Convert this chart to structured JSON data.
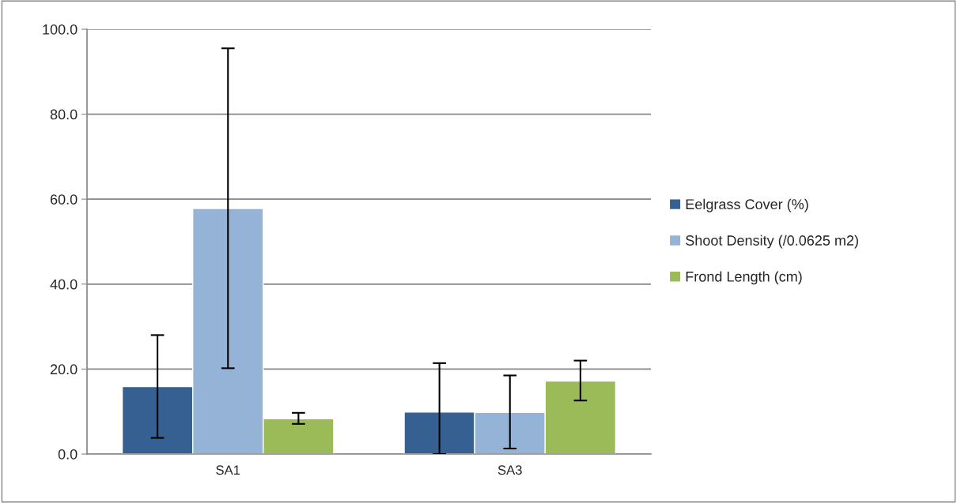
{
  "chart_data": {
    "type": "bar",
    "categories": [
      "SA1",
      "SA3"
    ],
    "series": [
      {
        "name": "Eelgrass Cover (%)",
        "color": "#376092",
        "values": [
          15.9,
          9.9
        ],
        "errors": [
          [
            3.8,
            28.0
          ],
          [
            0.0,
            21.4
          ]
        ]
      },
      {
        "name": "Shoot Density (/0.0625 m2)",
        "color": "#95b3d7",
        "values": [
          57.8,
          9.8
        ],
        "errors": [
          [
            20.2,
            95.5
          ],
          [
            1.3,
            18.5
          ]
        ]
      },
      {
        "name": "Frond Length (cm)",
        "color": "#9bbb59",
        "values": [
          8.3,
          17.2
        ],
        "errors": [
          [
            7.1,
            9.7
          ],
          [
            12.6,
            22.0
          ]
        ]
      }
    ],
    "ylim": [
      0,
      100
    ],
    "yticks": [
      {
        "value": 0,
        "label": "0.0"
      },
      {
        "value": 20,
        "label": "20.0"
      },
      {
        "value": 40,
        "label": "40.0"
      },
      {
        "value": 60,
        "label": "60.0"
      },
      {
        "value": 80,
        "label": "80.0"
      },
      {
        "value": 100,
        "label": "100.0"
      }
    ],
    "grid": "y",
    "legend": "right"
  }
}
